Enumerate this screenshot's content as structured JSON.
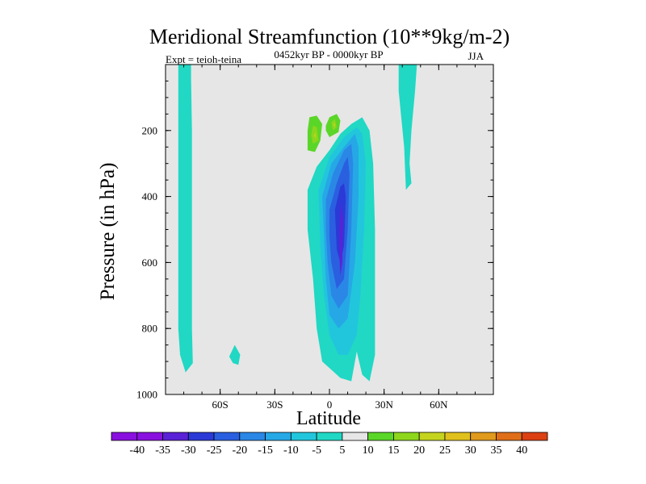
{
  "chart_data": {
    "type": "contour",
    "title": "Meridional Streamfunction (10**9kg/m-2)",
    "left_label": "Expt = teioh-teina",
    "center_label": "0452kyr BP - 0000kyr BP",
    "right_label": "JJA",
    "xlabel": "Latitude",
    "ylabel": "Pressure (in hPa)",
    "xlim": [
      -90,
      90
    ],
    "ylim": [
      1000,
      0
    ],
    "x_ticks": [
      {
        "value": -60,
        "label": "60S"
      },
      {
        "value": -30,
        "label": "30S"
      },
      {
        "value": 0,
        "label": "0"
      },
      {
        "value": 30,
        "label": "30N"
      },
      {
        "value": 60,
        "label": "60N"
      }
    ],
    "y_ticks": [
      {
        "value": 200,
        "label": "200"
      },
      {
        "value": 400,
        "label": "400"
      },
      {
        "value": 600,
        "label": "600"
      },
      {
        "value": 800,
        "label": "800"
      },
      {
        "value": 1000,
        "label": "1000"
      }
    ],
    "colorbar": {
      "labels": [
        "-40",
        "-35",
        "-30",
        "-25",
        "-20",
        "-15",
        "-10",
        "-5",
        "5",
        "10",
        "15",
        "20",
        "25",
        "30",
        "35",
        "40"
      ],
      "colors": [
        "#8a10e0",
        "#5a22d6",
        "#2b3ad6",
        "#2a5fe0",
        "#2a87e6",
        "#26a8e6",
        "#22c6dc",
        "#20d8c4",
        "#e6e6e6",
        "#5ad628",
        "#8ed61e",
        "#c4d41e",
        "#e0c01c",
        "#e09a1c",
        "#e06e18",
        "#dc4012"
      ]
    },
    "regions": [
      {
        "level": -5,
        "points": [
          [
            -83,
            0
          ],
          [
            -76,
            0
          ],
          [
            -76,
            40
          ],
          [
            -75.5,
            200
          ],
          [
            -75.5,
            400
          ],
          [
            -75.5,
            600
          ],
          [
            -75.5,
            800
          ],
          [
            -75,
            905
          ],
          [
            -79,
            933
          ],
          [
            -82,
            880
          ],
          [
            -83,
            800
          ],
          [
            -83,
            400
          ],
          [
            -83,
            200
          ]
        ]
      },
      {
        "level": 5,
        "points": [
          [
            -29,
            465
          ],
          [
            -25,
            560
          ],
          [
            -24,
            740
          ],
          [
            -25,
            790
          ],
          [
            -28,
            800
          ],
          [
            -30,
            720
          ],
          [
            -30,
            560
          ]
        ]
      },
      {
        "level": -5,
        "points": [
          [
            -52,
            850
          ],
          [
            -49,
            880
          ],
          [
            -50,
            910
          ],
          [
            -53,
            905
          ],
          [
            -55,
            885
          ]
        ]
      },
      {
        "level": 5,
        "points": [
          [
            -15,
            180
          ],
          [
            -14,
            120
          ],
          [
            -10,
            100
          ],
          [
            -5,
            105
          ],
          [
            -3,
            80
          ],
          [
            -5,
            0
          ],
          [
            5,
            0
          ],
          [
            7,
            100
          ],
          [
            8,
            140
          ],
          [
            6,
            200
          ],
          [
            1,
            250
          ],
          [
            -6,
            280
          ],
          [
            -15,
            290
          ],
          [
            -17,
            250
          ]
        ]
      },
      {
        "level": 10,
        "points": [
          [
            -12,
            200
          ],
          [
            -11,
            160
          ],
          [
            -7,
            155
          ],
          [
            -4,
            180
          ],
          [
            -5,
            230
          ],
          [
            -8,
            265
          ],
          [
            -12,
            260
          ]
        ]
      },
      {
        "level": 10,
        "points": [
          [
            -2,
            185
          ],
          [
            0,
            160
          ],
          [
            4,
            150
          ],
          [
            6,
            170
          ],
          [
            5,
            205
          ],
          [
            0,
            220
          ],
          [
            -2,
            200
          ]
        ]
      },
      {
        "level": 15,
        "points": [
          [
            -10,
            215
          ],
          [
            -9,
            185
          ],
          [
            -7,
            190
          ],
          [
            -6,
            230
          ],
          [
            -9,
            240
          ]
        ]
      },
      {
        "level": 15,
        "points": [
          [
            1,
            175
          ],
          [
            3,
            165
          ],
          [
            4,
            190
          ],
          [
            2,
            200
          ]
        ]
      },
      {
        "level": 20,
        "points": [
          [
            -8.5,
            215
          ],
          [
            -7.5,
            205
          ],
          [
            -7.5,
            225
          ]
        ]
      },
      {
        "level": 20,
        "points": [
          [
            2,
            180
          ],
          [
            3,
            178
          ],
          [
            3,
            190
          ]
        ]
      },
      {
        "level": -5,
        "points": [
          [
            -12,
            380
          ],
          [
            -7,
            310
          ],
          [
            0,
            260
          ],
          [
            6,
            210
          ],
          [
            12,
            180
          ],
          [
            18,
            160
          ],
          [
            22,
            200
          ],
          [
            24,
            300
          ],
          [
            25,
            500
          ],
          [
            25,
            700
          ],
          [
            25,
            880
          ],
          [
            22,
            960
          ],
          [
            18,
            940
          ],
          [
            15,
            870
          ],
          [
            12,
            960
          ],
          [
            6,
            950
          ],
          [
            0,
            920
          ],
          [
            -4,
            900
          ],
          [
            -7,
            800
          ],
          [
            -9,
            650
          ],
          [
            -12,
            500
          ]
        ]
      },
      {
        "level": -10,
        "points": [
          [
            -6,
            380
          ],
          [
            0,
            280
          ],
          [
            8,
            220
          ],
          [
            15,
            190
          ],
          [
            18,
            210
          ],
          [
            20,
            300
          ],
          [
            19,
            500
          ],
          [
            17,
            700
          ],
          [
            15,
            820
          ],
          [
            10,
            880
          ],
          [
            5,
            880
          ],
          [
            0,
            820
          ],
          [
            -3,
            700
          ],
          [
            -5,
            550
          ]
        ]
      },
      {
        "level": -15,
        "points": [
          [
            -4,
            400
          ],
          [
            1,
            300
          ],
          [
            8,
            250
          ],
          [
            14,
            210
          ],
          [
            16,
            250
          ],
          [
            16,
            400
          ],
          [
            14,
            600
          ],
          [
            10,
            770
          ],
          [
            5,
            800
          ],
          [
            0,
            760
          ],
          [
            -2,
            650
          ],
          [
            -3,
            520
          ]
        ]
      },
      {
        "level": -20,
        "points": [
          [
            -2,
            410
          ],
          [
            2,
            330
          ],
          [
            8,
            260
          ],
          [
            12,
            240
          ],
          [
            13,
            300
          ],
          [
            12,
            500
          ],
          [
            10,
            700
          ],
          [
            5,
            740
          ],
          [
            1,
            700
          ],
          [
            -1,
            600
          ],
          [
            -2,
            500
          ]
        ]
      },
      {
        "level": -25,
        "points": [
          [
            0,
            440
          ],
          [
            4,
            360
          ],
          [
            8,
            300
          ],
          [
            10,
            280
          ],
          [
            11,
            330
          ],
          [
            10,
            500
          ],
          [
            8,
            650
          ],
          [
            4,
            680
          ],
          [
            1,
            600
          ],
          [
            0,
            520
          ]
        ]
      },
      {
        "level": -30,
        "points": [
          [
            3,
            440
          ],
          [
            6,
            370
          ],
          [
            8,
            360
          ],
          [
            9,
            400
          ],
          [
            8,
            550
          ],
          [
            6,
            600
          ],
          [
            4,
            560
          ]
        ]
      },
      {
        "level": -35,
        "points": [
          [
            5.5,
            500
          ],
          [
            6.5,
            420
          ],
          [
            7.5,
            470
          ],
          [
            7,
            600
          ],
          [
            6,
            640
          ],
          [
            5.5,
            580
          ]
        ]
      },
      {
        "level": -5,
        "points": [
          [
            38,
            0
          ],
          [
            48,
            0
          ],
          [
            47,
            80
          ],
          [
            45,
            200
          ],
          [
            44,
            300
          ],
          [
            45,
            360
          ],
          [
            42,
            380
          ],
          [
            41,
            250
          ],
          [
            38,
            80
          ]
        ]
      },
      {
        "level": 5,
        "points": [
          [
            64,
            0
          ],
          [
            70,
            0
          ],
          [
            69,
            200
          ],
          [
            68,
            400
          ],
          [
            66,
            600
          ],
          [
            63,
            800
          ],
          [
            60,
            860
          ],
          [
            58,
            780
          ],
          [
            58,
            690
          ],
          [
            62,
            600
          ],
          [
            64,
            400
          ]
        ]
      },
      {
        "level": 5,
        "points": [
          [
            49,
            540
          ],
          [
            53,
            440
          ],
          [
            56,
            370
          ],
          [
            57,
            450
          ],
          [
            56,
            600
          ],
          [
            54,
            800
          ],
          [
            52,
            865
          ],
          [
            50,
            880
          ],
          [
            48,
            920
          ],
          [
            47,
            880
          ],
          [
            47,
            790
          ],
          [
            48,
            650
          ]
        ]
      }
    ]
  }
}
